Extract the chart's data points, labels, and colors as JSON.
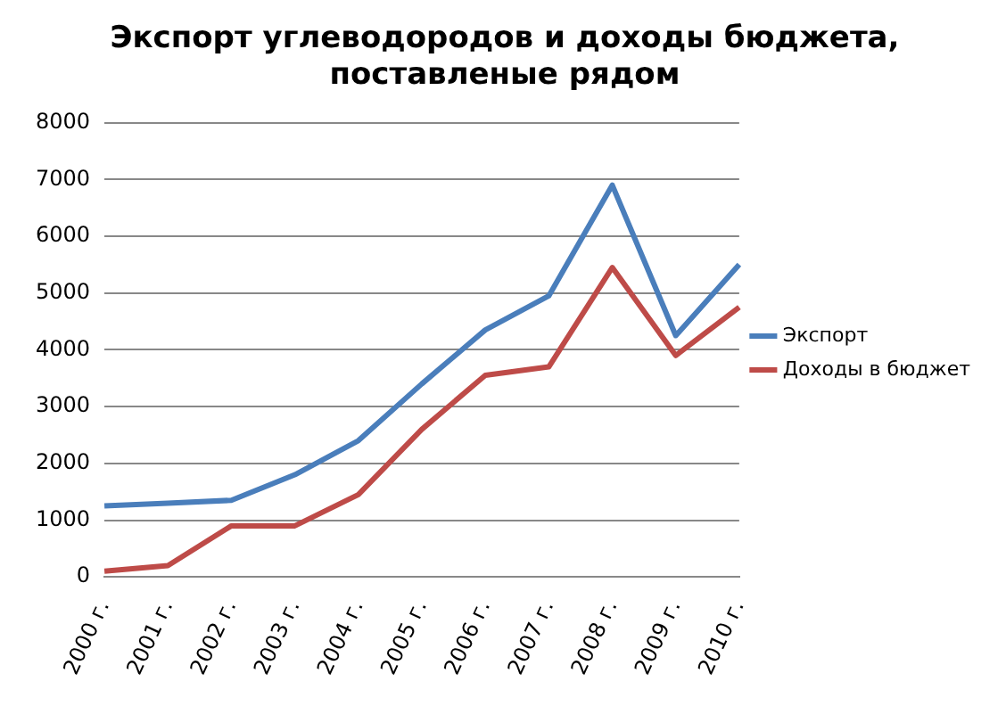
{
  "chart_data": {
    "type": "line",
    "title": "Экспорт углеводородов и доходы бюджета, поставленые рядом",
    "categories": [
      "2000 г.",
      "2001 г.",
      "2002 г.",
      "2003 г.",
      "2004 г.",
      "2005 г.",
      "2006 г.",
      "2007 г.",
      "2008 г.",
      "2009 г.",
      "2010 г."
    ],
    "series": [
      {
        "name": "Экспорт",
        "color": "#4a7ebb",
        "values": [
          1250,
          1300,
          1350,
          1800,
          2400,
          3400,
          4350,
          4950,
          6900,
          4250,
          5500
        ]
      },
      {
        "name": "Доходы в бюджет",
        "color": "#be4b48",
        "values": [
          100,
          200,
          900,
          900,
          1450,
          2600,
          3550,
          3700,
          5450,
          3900,
          4750
        ]
      }
    ],
    "ylim": [
      0,
      8000
    ],
    "yticks": [
      0,
      1000,
      2000,
      3000,
      4000,
      5000,
      6000,
      7000,
      8000
    ],
    "grid": "y",
    "legend": "right",
    "marker": "none",
    "line_style": "solid"
  }
}
